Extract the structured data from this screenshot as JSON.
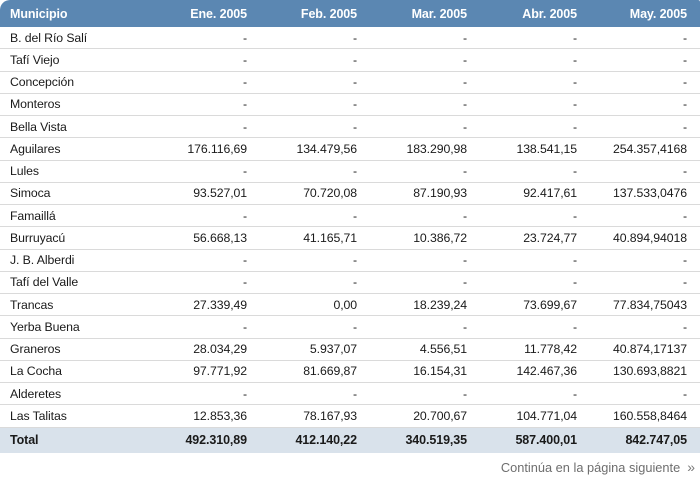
{
  "page": {
    "footer_note": "Continúa en la página siguiente",
    "footer_icon": "»"
  },
  "colors": {
    "header_bg": "#5b87b2",
    "header_text": "#ffffff",
    "total_row_bg": "#d9e2eb",
    "row_divider": "#dadada",
    "body_text": "#1a1a1a",
    "footer_text": "#6e6e6e"
  },
  "table": {
    "columns": [
      "Municipio",
      "Ene. 2005",
      "Feb. 2005",
      "Mar. 2005",
      "Abr. 2005",
      "May. 2005"
    ],
    "rows": [
      {
        "name": "B. del Río Salí",
        "values": [
          "-",
          "-",
          "-",
          "-",
          "-"
        ]
      },
      {
        "name": "Tafí Viejo",
        "values": [
          "-",
          "-",
          "-",
          "-",
          "-"
        ]
      },
      {
        "name": "Concepción",
        "values": [
          "-",
          "-",
          "-",
          "-",
          "-"
        ]
      },
      {
        "name": "Monteros",
        "values": [
          "-",
          "-",
          "-",
          "-",
          "-"
        ]
      },
      {
        "name": "Bella Vista",
        "values": [
          "-",
          "-",
          "-",
          "-",
          "-"
        ]
      },
      {
        "name": "Aguilares",
        "values": [
          "176.116,69",
          "134.479,56",
          "183.290,98",
          "138.541,15",
          "254.357,4168"
        ]
      },
      {
        "name": "Lules",
        "values": [
          "-",
          "-",
          "-",
          "-",
          "-"
        ]
      },
      {
        "name": "Simoca",
        "values": [
          "93.527,01",
          "70.720,08",
          "87.190,93",
          "92.417,61",
          "137.533,0476"
        ]
      },
      {
        "name": "Famaillá",
        "values": [
          "-",
          "-",
          "-",
          "-",
          "-"
        ]
      },
      {
        "name": "Burruyacú",
        "values": [
          "56.668,13",
          "41.165,71",
          "10.386,72",
          "23.724,77",
          "40.894,94018"
        ]
      },
      {
        "name": "J. B. Alberdi",
        "values": [
          "-",
          "-",
          "-",
          "-",
          "-"
        ]
      },
      {
        "name": "Tafí del Valle",
        "values": [
          "-",
          "-",
          "-",
          "-",
          "-"
        ]
      },
      {
        "name": "Trancas",
        "values": [
          "27.339,49",
          "0,00",
          "18.239,24",
          "73.699,67",
          "77.834,75043"
        ]
      },
      {
        "name": "Yerba Buena",
        "values": [
          "-",
          "-",
          "-",
          "-",
          "-"
        ]
      },
      {
        "name": "Graneros",
        "values": [
          "28.034,29",
          "5.937,07",
          "4.556,51",
          "11.778,42",
          "40.874,17137"
        ]
      },
      {
        "name": "La Cocha",
        "values": [
          "97.771,92",
          "81.669,87",
          "16.154,31",
          "142.467,36",
          "130.693,8821"
        ]
      },
      {
        "name": "Alderetes",
        "values": [
          "-",
          "-",
          "-",
          "-",
          "-"
        ]
      },
      {
        "name": "Las Talitas",
        "values": [
          "12.853,36",
          "78.167,93",
          "20.700,67",
          "104.771,04",
          "160.558,8464"
        ]
      }
    ],
    "total": {
      "name": "Total",
      "values": [
        "492.310,89",
        "412.140,22",
        "340.519,35",
        "587.400,01",
        "842.747,05"
      ]
    }
  }
}
